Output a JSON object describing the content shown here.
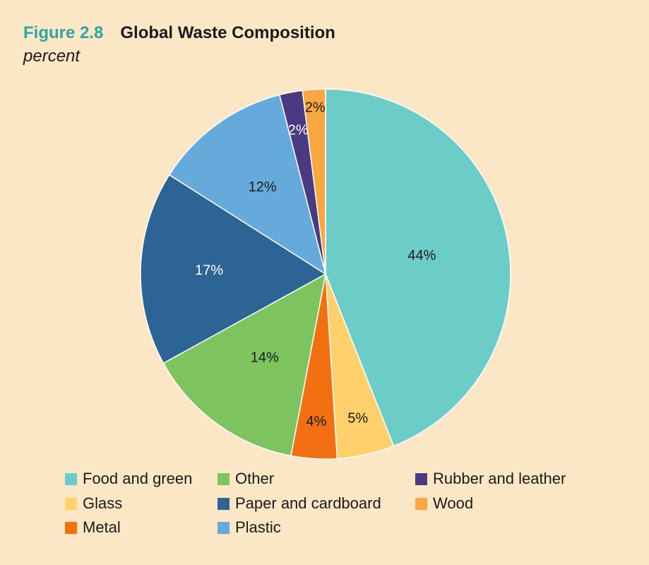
{
  "header": {
    "figure_label": "Figure 2.8",
    "title": "Global Waste Composition",
    "subtitle": "percent"
  },
  "chart_data": {
    "type": "pie",
    "title": "Global Waste Composition",
    "subtitle": "percent",
    "unit": "percent",
    "start": "12 o'clock",
    "direction": "clockwise",
    "slices": [
      {
        "name": "Food and green",
        "value": 44,
        "label": "44%",
        "color": "#6bccc8",
        "label_color": "#1b1b1b"
      },
      {
        "name": "Glass",
        "value": 5,
        "label": "5%",
        "color": "#ffd06b",
        "label_color": "#1b1b1b"
      },
      {
        "name": "Metal",
        "value": 4,
        "label": "4%",
        "color": "#f26f12",
        "label_color": "#1b1b1b"
      },
      {
        "name": "Other",
        "value": 14,
        "label": "14%",
        "color": "#7dc35e",
        "label_color": "#1b1b1b"
      },
      {
        "name": "Paper and cardboard",
        "value": 17,
        "label": "17%",
        "color": "#2c6496",
        "label_color": "#ffffff"
      },
      {
        "name": "Plastic",
        "value": 12,
        "label": "12%",
        "color": "#66aadc",
        "label_color": "#1b1b1b"
      },
      {
        "name": "Rubber and leather",
        "value": 2,
        "label": "2%",
        "color": "#4a3a82",
        "label_color": "#ffffff"
      },
      {
        "name": "Wood",
        "value": 2,
        "label": "2%",
        "color": "#f9a742",
        "label_color": "#1b1b1b"
      }
    ],
    "legend": {
      "placement": "bottom",
      "columns": [
        [
          "Food and green",
          "Glass",
          "Metal"
        ],
        [
          "Other",
          "Paper and cardboard",
          "Plastic"
        ],
        [
          "Rubber and leather",
          "Wood"
        ]
      ]
    }
  }
}
